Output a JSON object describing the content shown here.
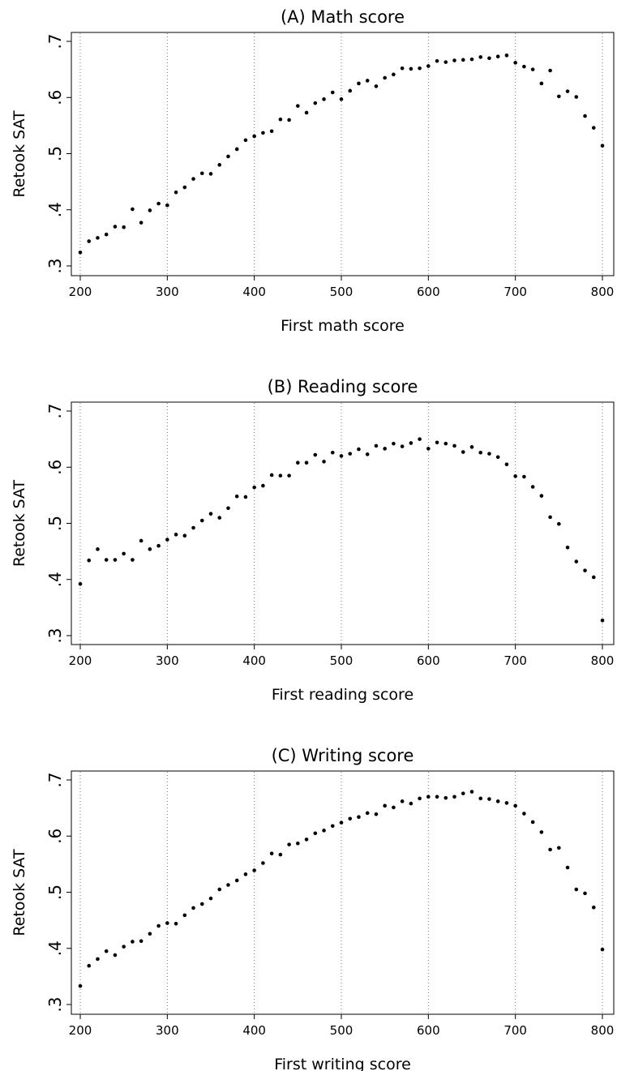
{
  "chart_data": [
    {
      "type": "scatter",
      "title": "(A) Math score",
      "xlabel": "First math score",
      "ylabel": "Retook SAT",
      "xlim": [
        200,
        800
      ],
      "ylim": [
        0.3,
        0.7
      ],
      "xticks": [
        200,
        300,
        400,
        500,
        600,
        700,
        800
      ],
      "xtick_labels": [
        "200",
        "300",
        "400",
        "500",
        "600",
        "700",
        "800"
      ],
      "yticks": [
        0.3,
        0.4,
        0.5,
        0.6,
        0.7
      ],
      "ytick_labels": [
        ".3",
        ".4",
        ".5",
        ".6",
        ".7"
      ],
      "grid": "vertical dotted lines at x ticks",
      "x": [
        200,
        210,
        220,
        230,
        240,
        250,
        260,
        270,
        280,
        290,
        300,
        310,
        320,
        330,
        340,
        350,
        360,
        370,
        380,
        390,
        400,
        410,
        420,
        430,
        440,
        450,
        460,
        470,
        480,
        490,
        500,
        510,
        520,
        530,
        540,
        550,
        560,
        570,
        580,
        590,
        600,
        610,
        620,
        630,
        640,
        650,
        660,
        670,
        680,
        690,
        700,
        710,
        720,
        730,
        740,
        750,
        760,
        770,
        780,
        790,
        800
      ],
      "values": [
        0.324,
        0.344,
        0.35,
        0.356,
        0.37,
        0.369,
        0.401,
        0.377,
        0.399,
        0.411,
        0.408,
        0.431,
        0.44,
        0.455,
        0.465,
        0.464,
        0.48,
        0.495,
        0.508,
        0.524,
        0.531,
        0.537,
        0.54,
        0.561,
        0.56,
        0.585,
        0.573,
        0.59,
        0.597,
        0.609,
        0.597,
        0.612,
        0.625,
        0.63,
        0.62,
        0.635,
        0.641,
        0.652,
        0.651,
        0.652,
        0.656,
        0.665,
        0.663,
        0.666,
        0.667,
        0.668,
        0.672,
        0.67,
        0.673,
        0.675,
        0.662,
        0.655,
        0.65,
        0.625,
        0.648,
        0.602,
        0.611,
        0.601,
        0.567,
        0.546,
        0.514
      ]
    },
    {
      "type": "scatter",
      "title": "(B) Reading score",
      "xlabel": "First reading score",
      "ylabel": "Retook SAT",
      "xlim": [
        200,
        800
      ],
      "ylim": [
        0.3,
        0.7
      ],
      "xticks": [
        200,
        300,
        400,
        500,
        600,
        700,
        800
      ],
      "xtick_labels": [
        "200",
        "300",
        "400",
        "500",
        "600",
        "700",
        "800"
      ],
      "yticks": [
        0.3,
        0.4,
        0.5,
        0.6,
        0.7
      ],
      "ytick_labels": [
        ".3",
        ".4",
        ".5",
        ".6",
        ".7"
      ],
      "grid": "vertical dotted lines at x ticks",
      "x": [
        200,
        210,
        220,
        230,
        240,
        250,
        260,
        270,
        280,
        290,
        300,
        310,
        320,
        330,
        340,
        350,
        360,
        370,
        380,
        390,
        400,
        410,
        420,
        430,
        440,
        450,
        460,
        470,
        480,
        490,
        500,
        510,
        520,
        530,
        540,
        550,
        560,
        570,
        580,
        590,
        600,
        610,
        620,
        630,
        640,
        650,
        660,
        670,
        680,
        690,
        700,
        710,
        720,
        730,
        740,
        750,
        760,
        770,
        780,
        790,
        800
      ],
      "values": [
        0.392,
        0.434,
        0.454,
        0.435,
        0.435,
        0.446,
        0.435,
        0.469,
        0.454,
        0.46,
        0.471,
        0.48,
        0.478,
        0.492,
        0.505,
        0.517,
        0.51,
        0.527,
        0.548,
        0.547,
        0.564,
        0.567,
        0.586,
        0.585,
        0.585,
        0.608,
        0.608,
        0.622,
        0.61,
        0.626,
        0.62,
        0.624,
        0.632,
        0.623,
        0.638,
        0.633,
        0.642,
        0.637,
        0.643,
        0.65,
        0.633,
        0.644,
        0.642,
        0.638,
        0.627,
        0.636,
        0.626,
        0.624,
        0.618,
        0.605,
        0.584,
        0.583,
        0.565,
        0.549,
        0.511,
        0.499,
        0.457,
        0.432,
        0.416,
        0.404,
        0.327
      ]
    },
    {
      "type": "scatter",
      "title": "(C) Writing score",
      "xlabel": "First writing score",
      "ylabel": "Retook SAT",
      "xlim": [
        200,
        800
      ],
      "ylim": [
        0.3,
        0.7
      ],
      "xticks": [
        200,
        300,
        400,
        500,
        600,
        700,
        800
      ],
      "xtick_labels": [
        "200",
        "300",
        "400",
        "500",
        "600",
        "700",
        "800"
      ],
      "yticks": [
        0.3,
        0.4,
        0.5,
        0.6,
        0.7
      ],
      "ytick_labels": [
        ".3",
        ".4",
        ".5",
        ".6",
        ".7"
      ],
      "grid": "vertical dotted lines at x ticks",
      "x": [
        200,
        210,
        220,
        230,
        240,
        250,
        260,
        270,
        280,
        290,
        300,
        310,
        320,
        330,
        340,
        350,
        360,
        370,
        380,
        390,
        400,
        410,
        420,
        430,
        440,
        450,
        460,
        470,
        480,
        490,
        500,
        510,
        520,
        530,
        540,
        550,
        560,
        570,
        580,
        590,
        600,
        610,
        620,
        630,
        640,
        650,
        660,
        670,
        680,
        690,
        700,
        710,
        720,
        730,
        740,
        750,
        760,
        770,
        780,
        790,
        800
      ],
      "values": [
        0.333,
        0.369,
        0.381,
        0.395,
        0.388,
        0.403,
        0.412,
        0.413,
        0.426,
        0.44,
        0.445,
        0.444,
        0.459,
        0.472,
        0.479,
        0.489,
        0.505,
        0.513,
        0.521,
        0.532,
        0.539,
        0.552,
        0.569,
        0.567,
        0.585,
        0.587,
        0.594,
        0.605,
        0.61,
        0.618,
        0.624,
        0.631,
        0.634,
        0.641,
        0.639,
        0.654,
        0.651,
        0.662,
        0.658,
        0.667,
        0.67,
        0.67,
        0.668,
        0.67,
        0.676,
        0.679,
        0.667,
        0.666,
        0.662,
        0.659,
        0.654,
        0.64,
        0.625,
        0.607,
        0.576,
        0.579,
        0.544,
        0.505,
        0.498,
        0.473,
        0.398
      ]
    }
  ]
}
